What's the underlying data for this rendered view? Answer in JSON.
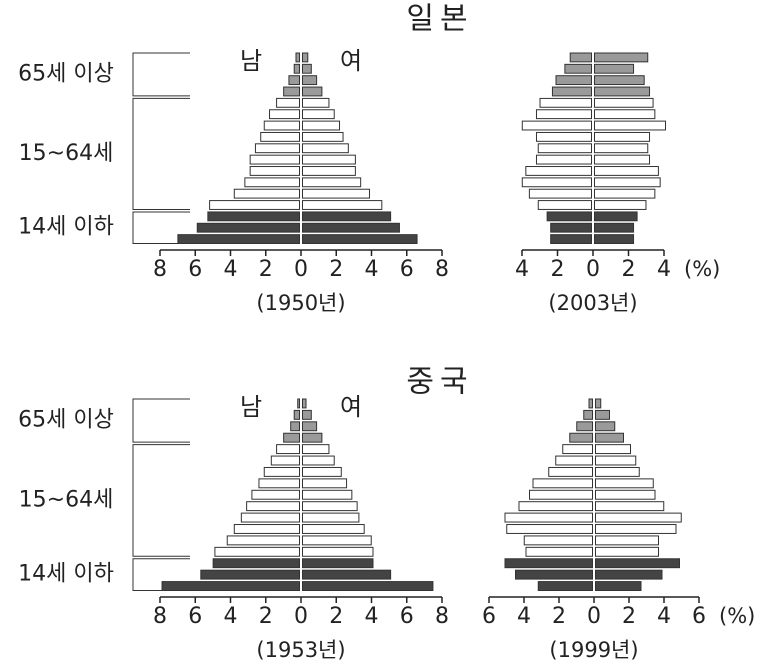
{
  "chart_data": [
    {
      "type": "pyramid",
      "title": "일본",
      "caption": "(1950년)",
      "age_brackets": [
        "65세 이상",
        "15~64세",
        "14세 이하"
      ],
      "categories": [
        null,
        null,
        null,
        null,
        null,
        null,
        null,
        null,
        null,
        null,
        null,
        null,
        null,
        null,
        null,
        null,
        null
      ],
      "colors": [
        "#9a9a9a",
        "#9a9a9a",
        "#9a9a9a",
        "#9a9a9a",
        "#ffffff",
        "#ffffff",
        "#ffffff",
        "#ffffff",
        "#ffffff",
        "#ffffff",
        "#ffffff",
        "#ffffff",
        "#ffffff",
        "#ffffff",
        "#444444",
        "#444444",
        "#444444"
      ],
      "series": [
        {
          "name": "남",
          "values": [
            0.2,
            0.3,
            0.6,
            0.9,
            1.3,
            1.7,
            2.0,
            2.2,
            2.5,
            2.8,
            2.8,
            3.1,
            3.7,
            5.1,
            5.2,
            5.8,
            6.9
          ]
        },
        {
          "name": "여",
          "values": [
            0.3,
            0.5,
            0.8,
            1.1,
            1.5,
            1.8,
            2.1,
            2.3,
            2.6,
            3.0,
            3.0,
            3.3,
            3.8,
            4.5,
            5.0,
            5.5,
            6.5
          ]
        }
      ],
      "xlim": [
        0,
        8
      ],
      "xticks": [
        0,
        2,
        4,
        6,
        8
      ]
    },
    {
      "type": "pyramid",
      "caption": "(2003년)",
      "unit": "(%)",
      "categories": [
        null,
        null,
        null,
        null,
        null,
        null,
        null,
        null,
        null,
        null,
        null,
        null,
        null,
        null,
        null,
        null,
        null
      ],
      "colors": [
        "#9a9a9a",
        "#9a9a9a",
        "#9a9a9a",
        "#9a9a9a",
        "#ffffff",
        "#ffffff",
        "#ffffff",
        "#ffffff",
        "#ffffff",
        "#ffffff",
        "#ffffff",
        "#ffffff",
        "#ffffff",
        "#ffffff",
        "#444444",
        "#444444",
        "#444444"
      ],
      "series": [
        {
          "values": [
            1.2,
            1.5,
            2.0,
            2.2,
            2.9,
            3.1,
            3.9,
            3.1,
            3.0,
            3.1,
            3.7,
            3.9,
            3.5,
            3.0,
            2.5,
            2.3,
            2.3
          ]
        },
        {
          "values": [
            3.0,
            2.2,
            2.8,
            3.1,
            3.3,
            3.4,
            4.0,
            3.1,
            3.0,
            3.1,
            3.6,
            3.7,
            3.4,
            2.9,
            2.4,
            2.2,
            2.2
          ]
        }
      ],
      "xlim": [
        0,
        4
      ],
      "xticks": [
        0,
        2,
        4
      ]
    },
    {
      "type": "pyramid",
      "title": "중국",
      "caption": "(1953년)",
      "age_brackets": [
        "65세 이상",
        "15~64세",
        "14세 이하"
      ],
      "categories": [
        null,
        null,
        null,
        null,
        null,
        null,
        null,
        null,
        null,
        null,
        null,
        null,
        null,
        null,
        null,
        null,
        null
      ],
      "colors": [
        "#9a9a9a",
        "#9a9a9a",
        "#9a9a9a",
        "#9a9a9a",
        "#ffffff",
        "#ffffff",
        "#ffffff",
        "#ffffff",
        "#ffffff",
        "#ffffff",
        "#ffffff",
        "#ffffff",
        "#ffffff",
        "#ffffff",
        "#444444",
        "#444444",
        "#444444"
      ],
      "series": [
        {
          "name": "남",
          "values": [
            0.1,
            0.3,
            0.5,
            0.9,
            1.3,
            1.6,
            2.0,
            2.3,
            2.7,
            3.0,
            3.3,
            3.7,
            4.1,
            4.8,
            4.9,
            5.6,
            7.8
          ]
        },
        {
          "name": "여",
          "values": [
            0.2,
            0.5,
            0.8,
            1.1,
            1.5,
            1.8,
            2.2,
            2.5,
            2.8,
            3.1,
            3.2,
            3.5,
            3.9,
            4.0,
            4.0,
            5.0,
            7.4
          ]
        }
      ],
      "xlim": [
        0,
        8
      ],
      "xticks": [
        0,
        2,
        4,
        6,
        8
      ]
    },
    {
      "type": "pyramid",
      "caption": "(1999년)",
      "unit": "(%)",
      "categories": [
        null,
        null,
        null,
        null,
        null,
        null,
        null,
        null,
        null,
        null,
        null,
        null,
        null,
        null,
        null,
        null,
        null
      ],
      "colors": [
        "#9a9a9a",
        "#9a9a9a",
        "#9a9a9a",
        "#9a9a9a",
        "#ffffff",
        "#ffffff",
        "#ffffff",
        "#ffffff",
        "#ffffff",
        "#ffffff",
        "#ffffff",
        "#ffffff",
        "#ffffff",
        "#ffffff",
        "#444444",
        "#444444",
        "#444444"
      ],
      "series": [
        {
          "values": [
            0.2,
            0.5,
            0.9,
            1.3,
            1.7,
            2.1,
            2.5,
            3.4,
            3.6,
            4.2,
            5.0,
            4.9,
            3.9,
            3.8,
            5.0,
            4.4,
            3.1
          ]
        },
        {
          "values": [
            0.3,
            0.8,
            1.1,
            1.6,
            2.0,
            2.3,
            2.5,
            3.3,
            3.4,
            3.9,
            4.9,
            4.6,
            3.6,
            3.6,
            4.8,
            3.8,
            2.6
          ]
        }
      ],
      "xlim": [
        0,
        6
      ],
      "xticks": [
        0,
        2,
        4,
        6
      ]
    }
  ]
}
